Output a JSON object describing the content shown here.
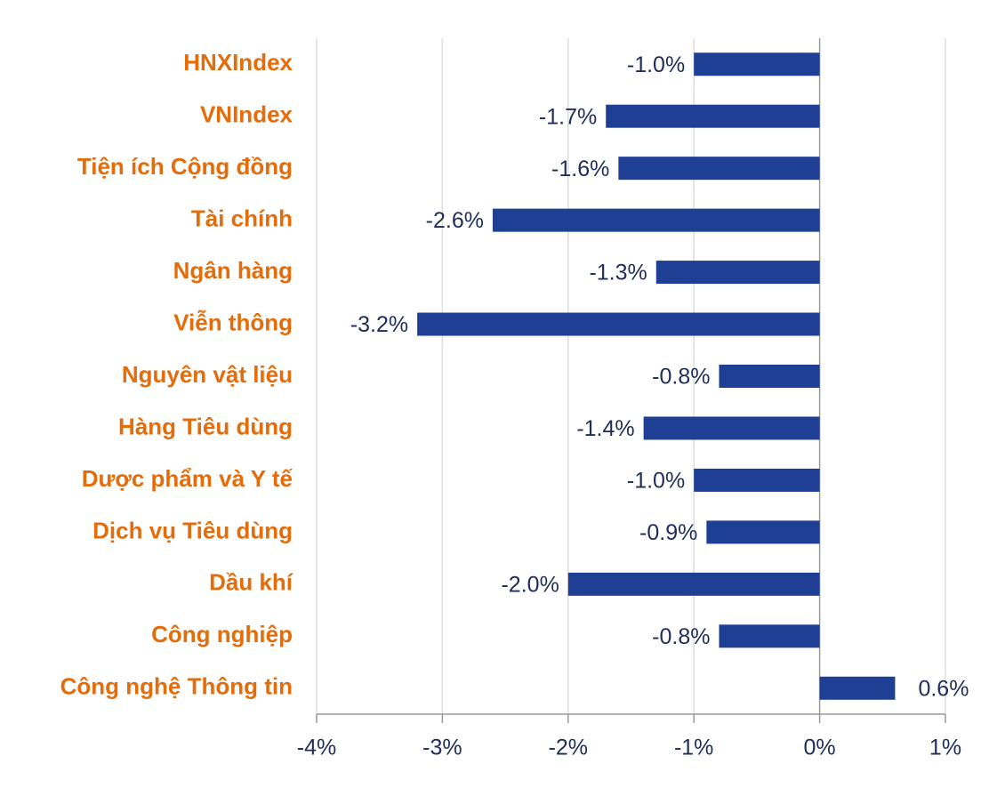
{
  "chart_data": {
    "type": "hbar",
    "categories": [
      "HNXIndex",
      "VNIndex",
      "Tiện ích Cộng đồng",
      "Tài chính",
      "Ngân hàng",
      "Viễn thông",
      "Nguyên vật liệu",
      "Hàng Tiêu dùng",
      "Dược phẩm và Y tế",
      "Dịch vụ Tiêu dùng",
      "Dầu khí",
      "Công nghiệp",
      "Công nghệ Thông tin"
    ],
    "values": [
      -1.0,
      -1.7,
      -1.6,
      -2.6,
      -1.3,
      -3.2,
      -0.8,
      -1.4,
      -1.0,
      -0.9,
      -2.0,
      -0.8,
      0.6
    ],
    "value_labels": [
      "-1.0%",
      "-1.7%",
      "-1.6%",
      "-2.6%",
      "-1.3%",
      "-3.2%",
      "-0.8%",
      "-1.4%",
      "-1.0%",
      "-0.9%",
      "-2.0%",
      "-0.8%",
      "0.6%"
    ],
    "color": "#1f3f94",
    "xlim": [
      -4,
      1
    ],
    "xticks": [
      {
        "value": -4,
        "label": "-4%"
      },
      {
        "value": -3,
        "label": "-3%"
      },
      {
        "value": -2,
        "label": "-2%"
      },
      {
        "value": -1,
        "label": "-1%"
      },
      {
        "value": 0,
        "label": "0%"
      },
      {
        "value": 1,
        "label": "1%"
      }
    ],
    "grid": true
  }
}
